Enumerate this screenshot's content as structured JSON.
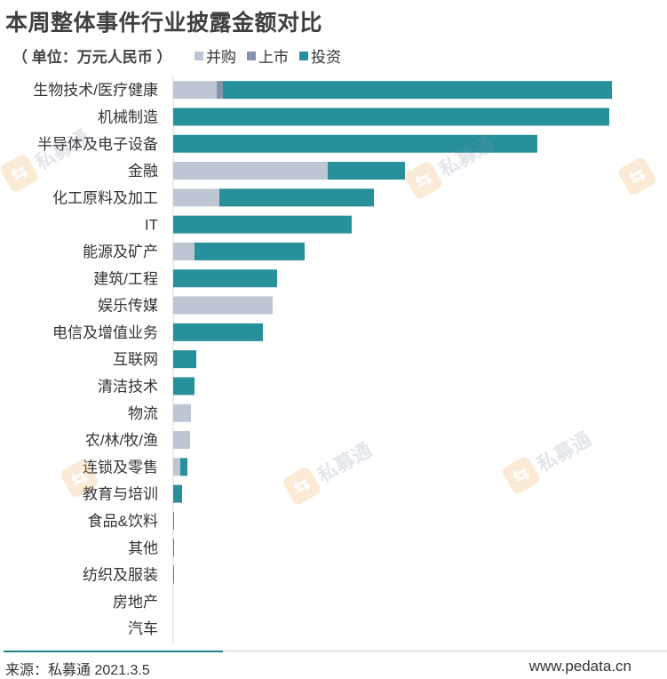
{
  "title": "本周整体事件行业披露金额对比",
  "unit_label": "（ 单位：万元人民币 ）",
  "legend": [
    {
      "label": "并购",
      "color": "#bfc6d3"
    },
    {
      "label": "上市",
      "color": "#8494ad"
    },
    {
      "label": "投资",
      "color": "#27909a"
    }
  ],
  "watermark_text": "私募通",
  "footer": {
    "source": "来源：私募通 2021.3.5",
    "site": "www.pedata.cn"
  },
  "chart_data": {
    "type": "bar",
    "orientation": "horizontal",
    "stacked": true,
    "categories": [
      "生物技术/医疗健康",
      "机械制造",
      "半导体及电子设备",
      "金融",
      "化工原料及加工",
      "IT",
      "能源及矿产",
      "建筑/工程",
      "娱乐传媒",
      "电信及增值业务",
      "互联网",
      "清洁技术",
      "物流",
      "农/林/牧/渔",
      "连锁及零售",
      "教育与培训",
      "食品&饮料",
      "其他",
      "纺织及服装",
      "房地产",
      "汽车"
    ],
    "series": [
      {
        "name": "并购",
        "color": "#bfc6d3",
        "values": [
          49,
          0,
          0,
          174,
          52,
          0,
          24,
          0,
          112,
          0,
          0,
          0,
          20,
          19,
          8,
          0,
          0,
          0,
          0,
          0,
          0
        ]
      },
      {
        "name": "上市",
        "color": "#8494ad",
        "values": [
          7,
          0,
          0,
          0,
          0,
          0,
          0,
          0,
          0,
          0,
          0,
          0,
          0,
          0,
          0,
          0,
          0,
          0,
          0,
          0,
          0
        ]
      },
      {
        "name": "投资",
        "color": "#27909a",
        "values": [
          438,
          491,
          410,
          87,
          174,
          201,
          124,
          117,
          0,
          101,
          26,
          24,
          0,
          0,
          8,
          10,
          1,
          1,
          1,
          0,
          0
        ]
      }
    ],
    "grid": false,
    "legend_position": "top"
  }
}
